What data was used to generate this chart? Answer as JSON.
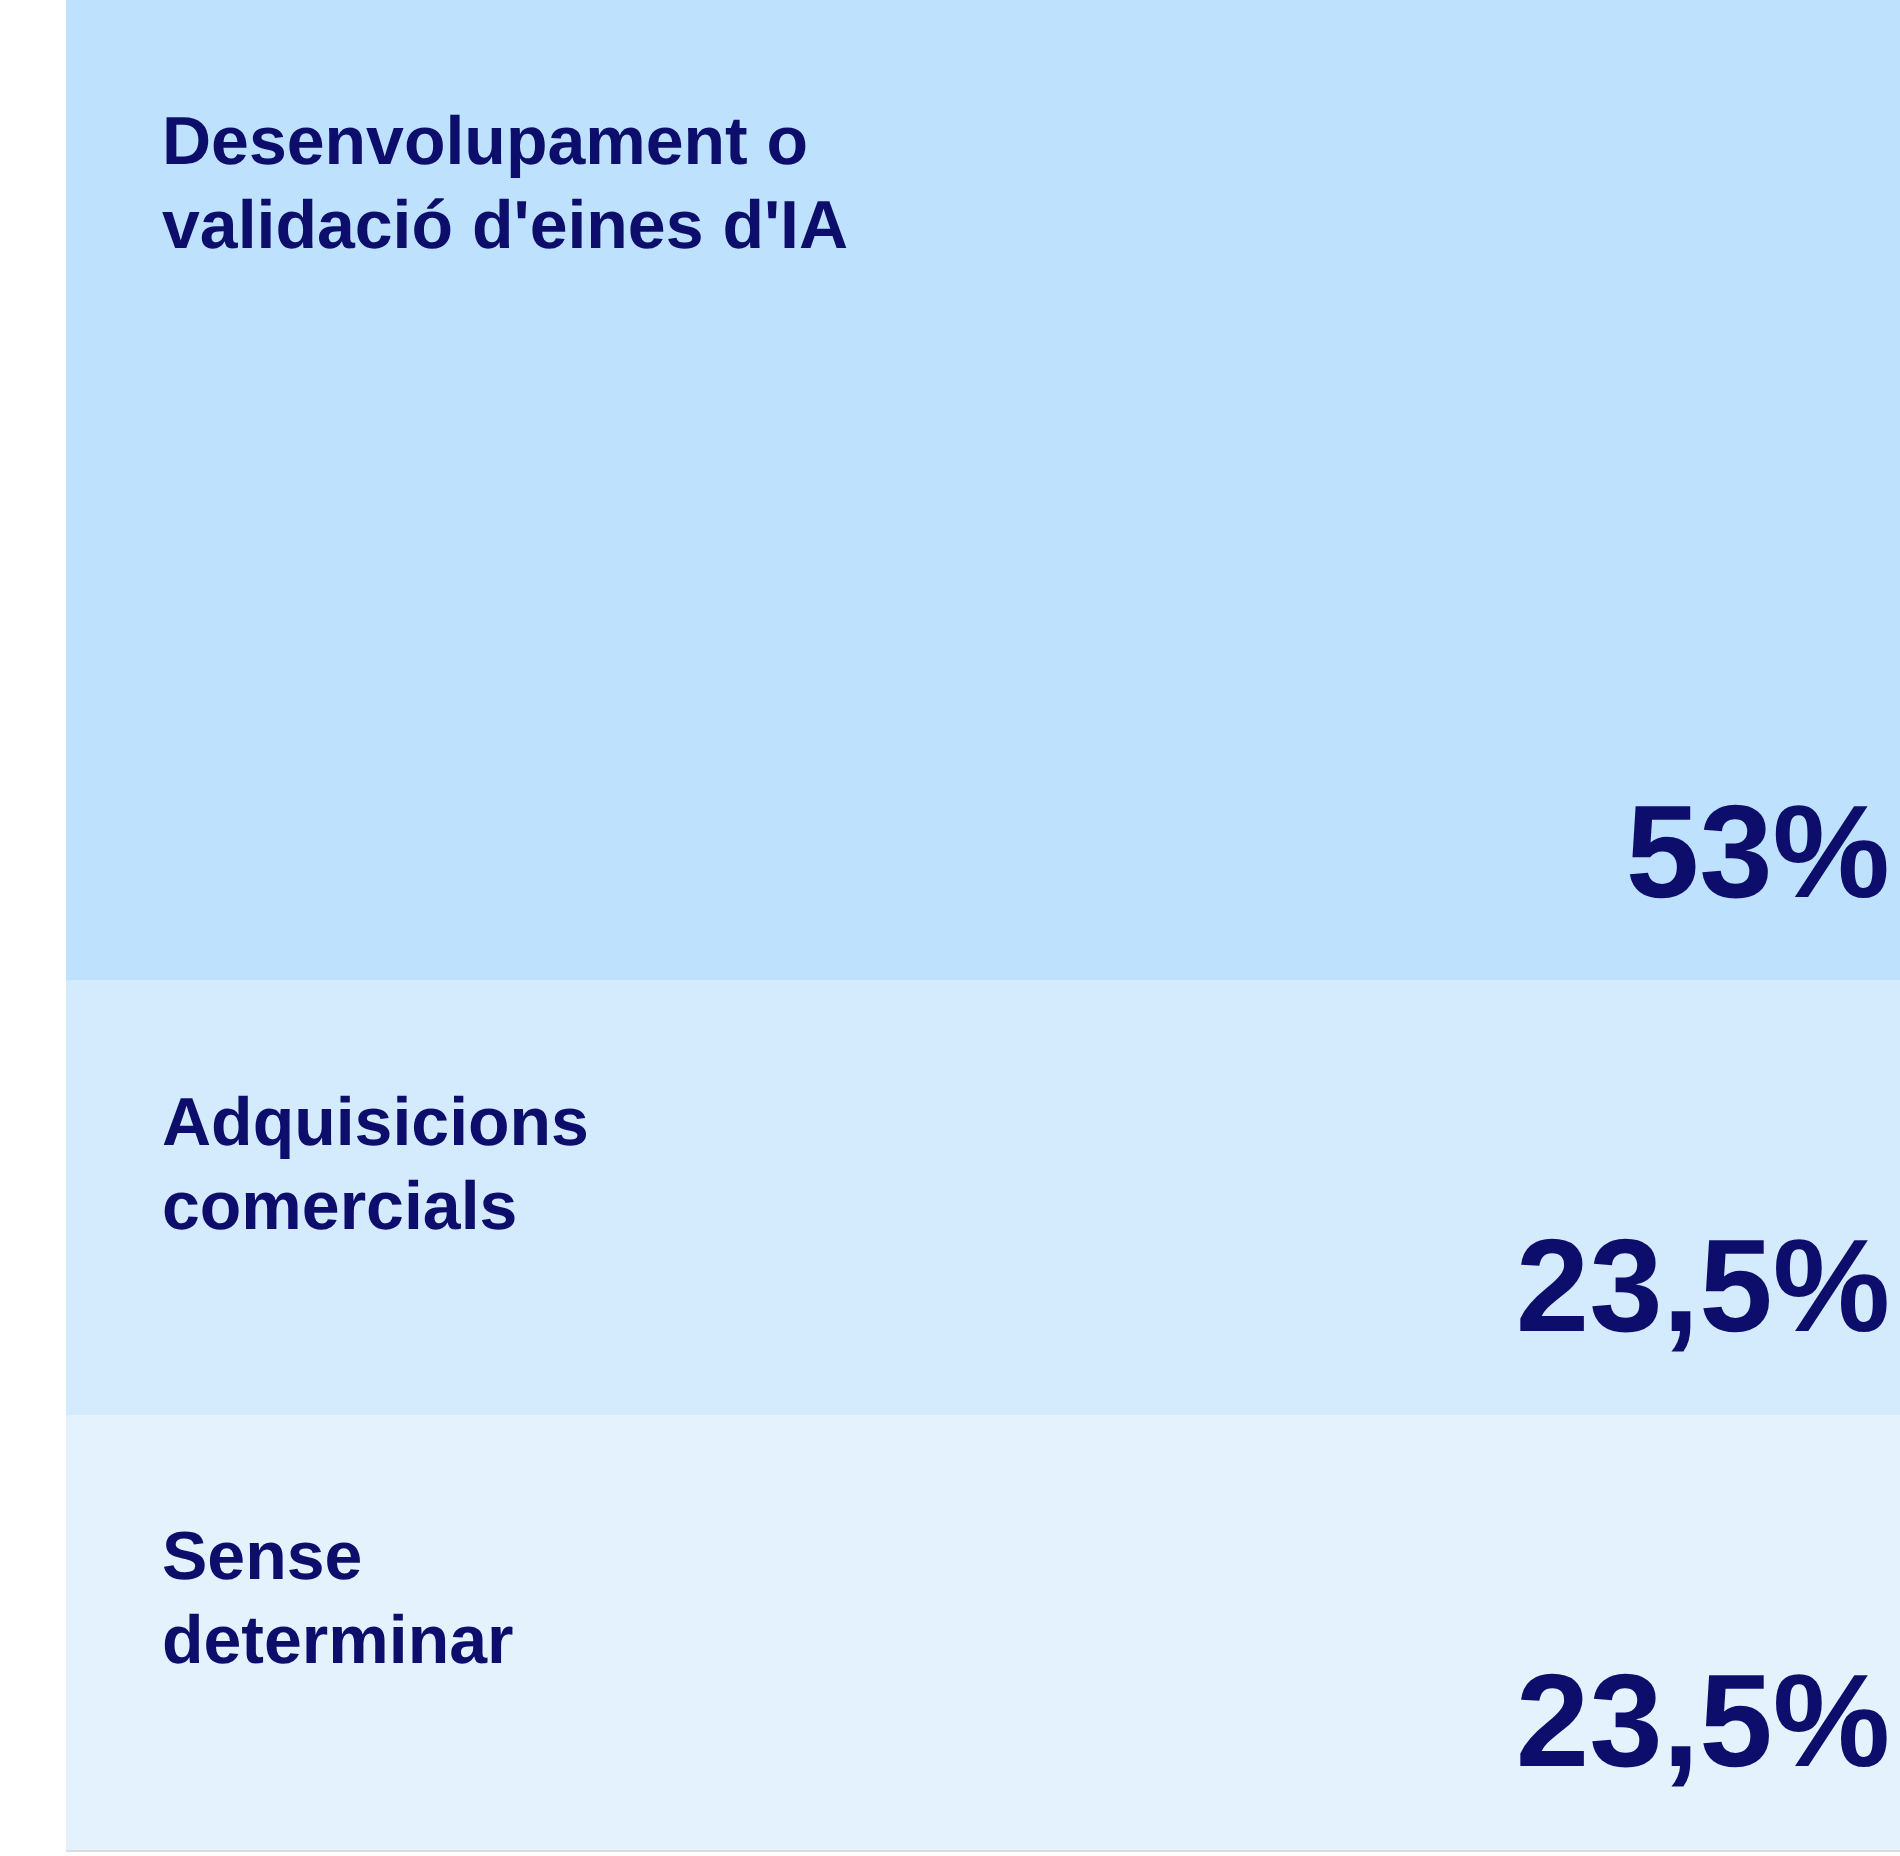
{
  "chart_data": {
    "type": "bar",
    "stacked": true,
    "categories": [
      null
    ],
    "ylim": [
      0,
      100
    ],
    "tick_labels": false,
    "legend": false,
    "series": [
      {
        "name": "Sense\ndeterminar",
        "color": "#e4f2fe",
        "values": [
          23.5
        ],
        "value_labels": [
          "23,5%"
        ]
      },
      {
        "name": "Adquisicions\ncomercials",
        "color": "#d4eafd",
        "values": [
          23.5
        ],
        "value_labels": [
          "23,5%"
        ]
      },
      {
        "name": "Desenvolupament o\nvalidació d'eines d'IA",
        "color": "#bee2fd",
        "values": [
          53
        ],
        "value_labels": [
          "53%"
        ]
      }
    ]
  }
}
